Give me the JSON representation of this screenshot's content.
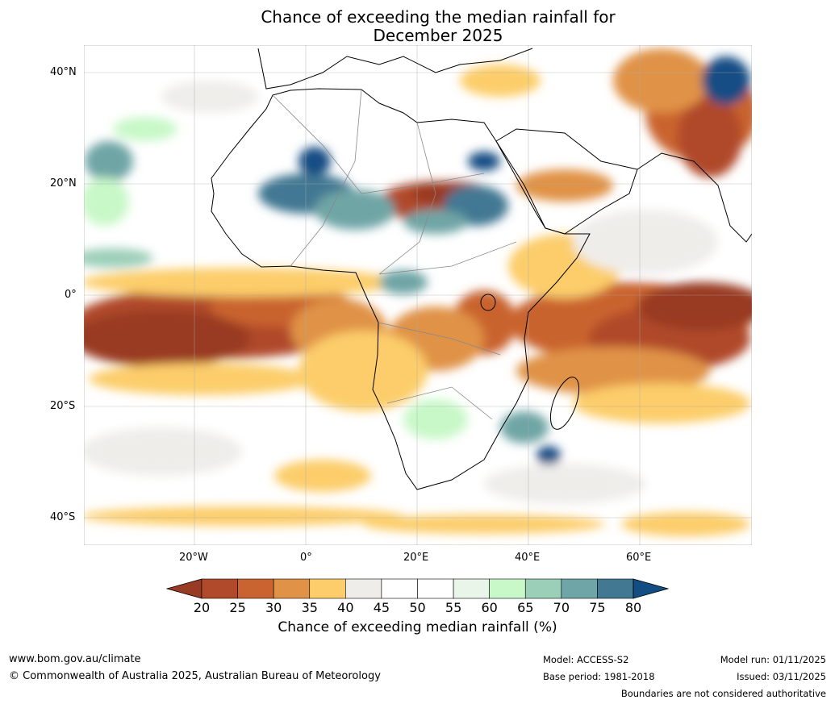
{
  "title_line1": "Chance of exceeding the median rainfall for",
  "title_line2": "December 2025",
  "lat_ticks": [
    "40°N",
    "20°N",
    "0°",
    "20°S",
    "40°S"
  ],
  "lon_ticks": [
    "20°W",
    "0°",
    "20°E",
    "40°E",
    "60°E"
  ],
  "legend": {
    "label": "Chance of exceeding median rainfall (%)",
    "levels": [
      "20",
      "25",
      "30",
      "35",
      "40",
      "45",
      "50",
      "55",
      "60",
      "65",
      "70",
      "75",
      "80"
    ],
    "colors": [
      "#993a24",
      "#b04a2a",
      "#c9632f",
      "#e09346",
      "#fccd6a",
      "#efedea",
      "#ffffff",
      "#ffffff",
      "#e9f5e9",
      "#c8f8c8",
      "#9bcfb8",
      "#6fa5a6",
      "#437893",
      "#124e84"
    ]
  },
  "footer": {
    "url": "www.bom.gov.au/climate",
    "copyright": "© Commonwealth of Australia 2025, Australian Bureau of Meteorology",
    "model": "Model: ACCESS-S2",
    "base_period": "Base period: 1981-2018",
    "model_run": "Model run: 01/11/2025",
    "issued": "Issued: 03/11/2025",
    "disclaimer": "Boundaries are not considered authoritative"
  }
}
